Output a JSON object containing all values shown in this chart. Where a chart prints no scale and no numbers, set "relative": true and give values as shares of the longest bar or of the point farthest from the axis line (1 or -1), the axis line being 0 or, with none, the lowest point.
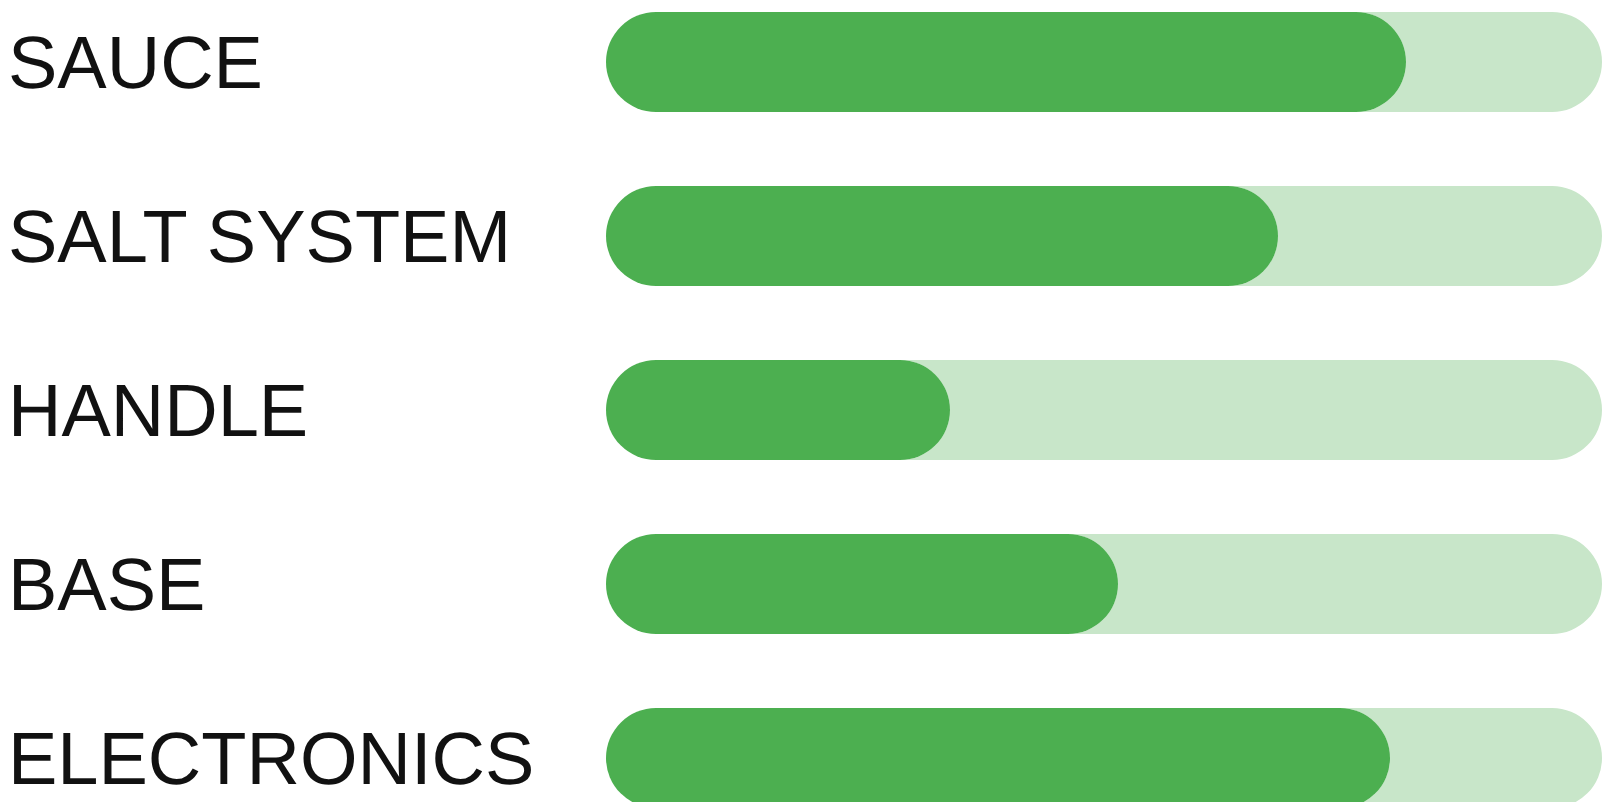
{
  "chart_data": {
    "type": "bar",
    "orientation": "horizontal",
    "relative": true,
    "categories": [
      "SAUCE",
      "SALT SYSTEM",
      "HANDLE",
      "BASE",
      "ELECTRONICS"
    ],
    "values": [
      1,
      0.84,
      0.43,
      0.64,
      0.98
    ],
    "color": "#4caf50"
  }
}
